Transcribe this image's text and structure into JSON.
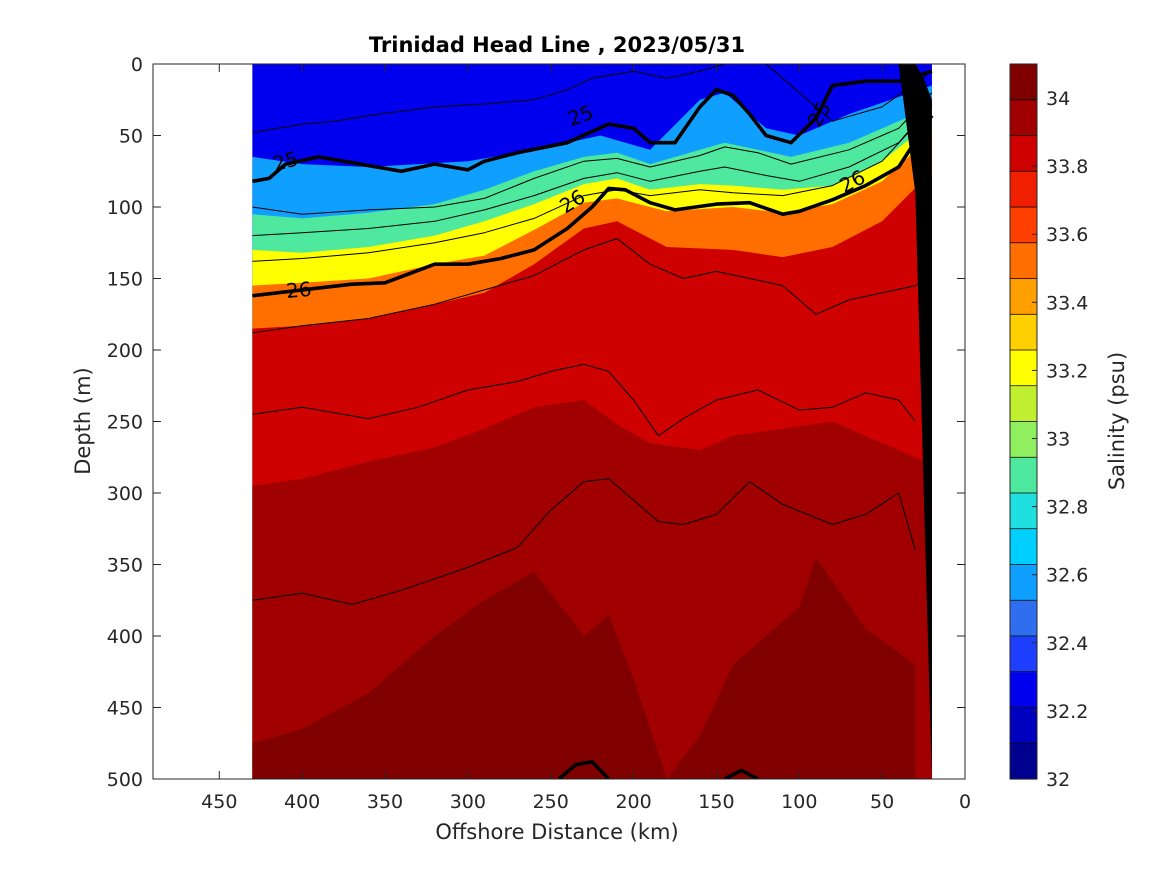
{
  "chart_data": {
    "type": "heatmap",
    "title": "Trinidad Head Line , 2023/05/31",
    "xlabel": "Offshore Distance (km)",
    "ylabel": "Depth (m)",
    "xlim": [
      490,
      0
    ],
    "ylim": [
      0,
      500
    ],
    "x_reversed": true,
    "y_reversed": true,
    "xticks": [
      450,
      400,
      350,
      300,
      250,
      200,
      150,
      100,
      50,
      0
    ],
    "yticks": [
      0,
      50,
      100,
      150,
      200,
      250,
      300,
      350,
      400,
      450,
      500
    ],
    "colorbar": {
      "label": "Salinity (psu)",
      "min": 32,
      "max": 34.1,
      "ticks": [
        32,
        32.2,
        32.4,
        32.6,
        32.8,
        33,
        33.2,
        33.4,
        33.6,
        33.8,
        34
      ],
      "colors": [
        "#00008f",
        "#0000bf",
        "#0000ef",
        "#1f3fff",
        "#2f6fef",
        "#0f9fff",
        "#00cfff",
        "#1fe0df",
        "#4fe89f",
        "#8fef5f",
        "#bfef2f",
        "#ffff00",
        "#ffcf00",
        "#ff9f00",
        "#ff6f00",
        "#ff3f00",
        "#ef1f00",
        "#cf0000",
        "#a00000",
        "#800000"
      ]
    },
    "data_extent_x": [
      430,
      20
    ],
    "grid": false,
    "salinity_layers": [
      {
        "level": 32.3,
        "x": [
          430,
          300,
          225,
          180,
          160,
          140,
          120,
          95,
          60,
          20
        ],
        "depth": [
          0,
          15,
          25,
          55,
          30,
          10,
          10,
          45,
          20,
          0
        ]
      },
      {
        "level": 32.6,
        "x": [
          430,
          400,
          360,
          330,
          300,
          270,
          240,
          220,
          190,
          160,
          145,
          120,
          100,
          70,
          20
        ],
        "depth": [
          65,
          70,
          72,
          70,
          68,
          62,
          55,
          50,
          60,
          25,
          20,
          45,
          50,
          35,
          15
        ]
      },
      {
        "level": 32.9,
        "x": [
          430,
          400,
          360,
          320,
          290,
          260,
          230,
          210,
          190,
          160,
          145,
          125,
          105,
          70,
          20
        ],
        "depth": [
          105,
          108,
          104,
          98,
          88,
          75,
          65,
          62,
          70,
          60,
          55,
          60,
          65,
          55,
          30
        ]
      },
      {
        "level": 33.2,
        "x": [
          430,
          400,
          360,
          320,
          290,
          260,
          230,
          210,
          190,
          160,
          140,
          110,
          80,
          50,
          20
        ],
        "depth": [
          130,
          132,
          128,
          120,
          110,
          98,
          84,
          80,
          88,
          84,
          85,
          88,
          85,
          68,
          40
        ]
      },
      {
        "level": 33.5,
        "x": [
          430,
          400,
          360,
          320,
          290,
          260,
          230,
          210,
          180,
          140,
          110,
          80,
          50,
          20
        ],
        "depth": [
          155,
          153,
          150,
          140,
          134,
          116,
          97,
          94,
          103,
          100,
          104,
          98,
          82,
          50
        ]
      },
      {
        "level": 33.8,
        "x": [
          430,
          400,
          360,
          320,
          290,
          260,
          230,
          210,
          180,
          140,
          110,
          80,
          50,
          20
        ],
        "depth": [
          185,
          183,
          178,
          168,
          160,
          140,
          115,
          110,
          128,
          130,
          135,
          128,
          110,
          75
        ]
      },
      {
        "level": 33.95,
        "x": [
          430,
          400,
          360,
          320,
          290,
          260,
          230,
          210,
          190,
          160,
          140,
          110,
          80,
          50,
          20
        ],
        "depth": [
          295,
          290,
          278,
          268,
          255,
          240,
          235,
          252,
          265,
          270,
          260,
          255,
          250,
          265,
          280
        ]
      },
      {
        "level": 34.05,
        "x": [
          430,
          400,
          360,
          320,
          290,
          260,
          230,
          215,
          200,
          180,
          160,
          140,
          115,
          100,
          90,
          60,
          30
        ],
        "depth": [
          475,
          465,
          440,
          400,
          375,
          355,
          400,
          385,
          430,
          500,
          470,
          420,
          395,
          380,
          345,
          395,
          420
        ]
      }
    ],
    "density_contours": [
      {
        "value": 25,
        "bold": true,
        "x": [
          430,
          420,
          410,
          390,
          370,
          340,
          320,
          300,
          290,
          270,
          240,
          215,
          200,
          190,
          175,
          160,
          150,
          140,
          130,
          120,
          105,
          90,
          80,
          60,
          40,
          20
        ],
        "depth": [
          82,
          80,
          70,
          65,
          69,
          75,
          70,
          74,
          68,
          62,
          55,
          42,
          45,
          55,
          55,
          30,
          18,
          22,
          35,
          50,
          55,
          38,
          15,
          12,
          12,
          5
        ]
      },
      {
        "value": 26,
        "bold": true,
        "x": [
          430,
          400,
          370,
          350,
          320,
          300,
          280,
          260,
          240,
          225,
          215,
          205,
          190,
          175,
          150,
          130,
          110,
          100,
          80,
          60,
          40,
          20
        ],
        "depth": [
          162,
          158,
          154,
          153,
          140,
          140,
          136,
          130,
          115,
          100,
          87,
          88,
          97,
          102,
          98,
          97,
          105,
          103,
          95,
          85,
          72,
          36
        ]
      },
      {
        "value": 24.5,
        "bold": false,
        "x": [
          430,
          400,
          380,
          360,
          320,
          290,
          260,
          240,
          225,
          200,
          180,
          160,
          145,
          120,
          100,
          80,
          50,
          20
        ],
        "depth": [
          48,
          42,
          40,
          36,
          30,
          28,
          25,
          18,
          10,
          5,
          10,
          5,
          0,
          0,
          20,
          40,
          30,
          5
        ]
      },
      {
        "value": 25.25,
        "bold": false,
        "x": [
          430,
          400,
          360,
          320,
          290,
          260,
          230,
          210,
          190,
          160,
          145,
          125,
          105,
          70,
          40,
          20
        ],
        "depth": [
          100,
          105,
          102,
          100,
          94,
          80,
          68,
          66,
          72,
          64,
          58,
          62,
          70,
          60,
          45,
          20
        ]
      },
      {
        "value": 25.5,
        "bold": false,
        "x": [
          430,
          400,
          360,
          320,
          290,
          260,
          230,
          210,
          190,
          160,
          145,
          120,
          100,
          70,
          40,
          20
        ],
        "depth": [
          120,
          118,
          115,
          110,
          102,
          92,
          80,
          76,
          82,
          75,
          72,
          78,
          82,
          72,
          55,
          28
        ]
      },
      {
        "value": 25.75,
        "bold": false,
        "x": [
          430,
          400,
          360,
          320,
          290,
          260,
          230,
          210,
          190,
          160,
          140,
          110,
          80,
          50,
          20
        ],
        "depth": [
          138,
          136,
          132,
          125,
          118,
          108,
          92,
          88,
          92,
          88,
          90,
          92,
          85,
          68,
          30
        ]
      },
      {
        "value": 26.25,
        "bold": false,
        "x": [
          430,
          400,
          360,
          320,
          290,
          260,
          230,
          210,
          190,
          170,
          150,
          130,
          110,
          90,
          70,
          50,
          30,
          20
        ],
        "depth": [
          188,
          183,
          178,
          168,
          158,
          148,
          130,
          122,
          140,
          150,
          145,
          150,
          155,
          175,
          165,
          160,
          155,
          147
        ]
      },
      {
        "value": 26.5,
        "bold": false,
        "x": [
          430,
          400,
          360,
          330,
          300,
          270,
          250,
          230,
          215,
          200,
          185,
          170,
          150,
          125,
          100,
          80,
          60,
          40,
          30
        ],
        "depth": [
          245,
          240,
          248,
          240,
          228,
          222,
          215,
          210,
          215,
          235,
          260,
          248,
          235,
          228,
          242,
          240,
          230,
          235,
          250
        ]
      },
      {
        "value": 26.75,
        "bold": false,
        "x": [
          430,
          400,
          370,
          340,
          300,
          270,
          250,
          230,
          215,
          200,
          185,
          170,
          150,
          130,
          110,
          80,
          60,
          40,
          30
        ],
        "depth": [
          375,
          370,
          378,
          368,
          352,
          338,
          312,
          292,
          290,
          305,
          320,
          322,
          315,
          292,
          308,
          322,
          315,
          300,
          340
        ]
      },
      {
        "value": 27,
        "bold": true,
        "x": [
          245,
          235,
          225,
          215
        ],
        "depth": [
          500,
          490,
          488,
          500
        ]
      },
      {
        "value": 27,
        "bold": true,
        "x": [
          145,
          135,
          125
        ],
        "depth": [
          500,
          494,
          500
        ]
      }
    ],
    "contour_labels": [
      {
        "text": "25",
        "x": 410,
        "depth": 68,
        "angle": -15
      },
      {
        "text": "25",
        "x": 232,
        "depth": 36,
        "angle": -20
      },
      {
        "text": "25",
        "x": 88,
        "depth": 35,
        "angle": -60
      },
      {
        "text": "26",
        "x": 402,
        "depth": 158,
        "angle": -5
      },
      {
        "text": "26",
        "x": 237,
        "depth": 96,
        "angle": -32
      },
      {
        "text": "26",
        "x": 68,
        "depth": 82,
        "angle": -28
      }
    ],
    "bathymetry": [
      [
        20,
        500
      ],
      [
        20,
        25
      ],
      [
        25,
        10
      ],
      [
        30,
        0
      ],
      [
        40,
        0
      ],
      [
        30,
        90
      ],
      [
        20,
        500
      ]
    ]
  }
}
